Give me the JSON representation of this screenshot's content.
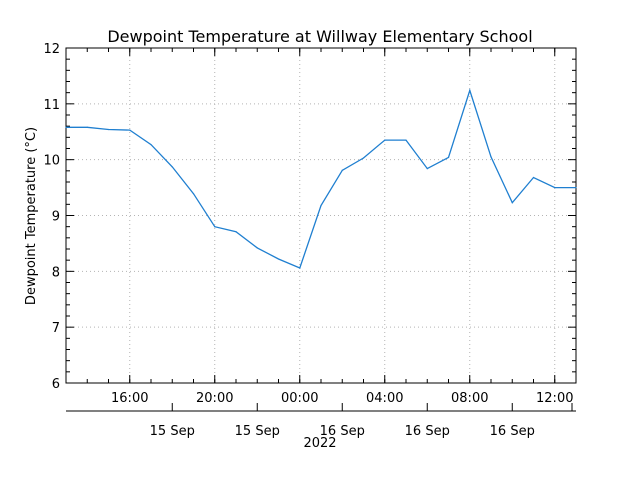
{
  "chart_data": {
    "type": "line",
    "title": "Dewpoint Temperature at Willway Elementary School",
    "ylabel": "Dewpoint Temperature (°C)",
    "xlabel": "2022",
    "ylim": [
      6,
      12
    ],
    "yticks": [
      6,
      7,
      8,
      9,
      10,
      11,
      12
    ],
    "xlim": [
      "2022-09-15T13:00",
      "2022-09-16T13:00"
    ],
    "grid": true,
    "line_color": "#1f7fd0",
    "x_time_ticks": [
      {
        "label": "16:00",
        "t": "2022-09-15T16:00"
      },
      {
        "label": "20:00",
        "t": "2022-09-15T20:00"
      },
      {
        "label": "00:00",
        "t": "2022-09-16T00:00"
      },
      {
        "label": "04:00",
        "t": "2022-09-16T04:00"
      },
      {
        "label": "08:00",
        "t": "2022-09-16T08:00"
      },
      {
        "label": "12:00",
        "t": "2022-09-16T12:00"
      }
    ],
    "x_date_ticks": [
      {
        "label": "15 Sep",
        "t": "2022-09-15T16:00"
      },
      {
        "label": "15 Sep",
        "t": "2022-09-15T20:00"
      },
      {
        "label": "16 Sep",
        "t": "2022-09-16T00:00"
      },
      {
        "label": "16 Sep",
        "t": "2022-09-16T04:00"
      },
      {
        "label": "16 Sep",
        "t": "2022-09-16T08:00"
      }
    ],
    "series": [
      {
        "x": [
          "2022-09-15T13:00",
          "2022-09-15T14:00",
          "2022-09-15T15:00",
          "2022-09-15T16:00",
          "2022-09-15T17:00",
          "2022-09-15T18:00",
          "2022-09-15T19:00",
          "2022-09-15T20:00",
          "2022-09-15T21:00",
          "2022-09-15T22:00",
          "2022-09-15T23:00",
          "2022-09-16T00:00",
          "2022-09-16T01:00",
          "2022-09-16T02:00",
          "2022-09-16T03:00",
          "2022-09-16T04:00",
          "2022-09-16T05:00",
          "2022-09-16T06:00",
          "2022-09-16T07:00",
          "2022-09-16T08:00",
          "2022-09-16T09:00",
          "2022-09-16T10:00",
          "2022-09-16T11:00",
          "2022-09-16T12:00",
          "2022-09-16T13:00"
        ],
        "values": [
          10.58,
          10.58,
          10.54,
          10.53,
          10.27,
          9.87,
          9.39,
          8.8,
          8.71,
          8.42,
          8.22,
          8.06,
          9.18,
          9.81,
          10.03,
          10.35,
          10.35,
          9.84,
          10.04,
          11.24,
          10.05,
          9.23,
          9.68,
          9.5,
          9.5
        ]
      }
    ]
  }
}
